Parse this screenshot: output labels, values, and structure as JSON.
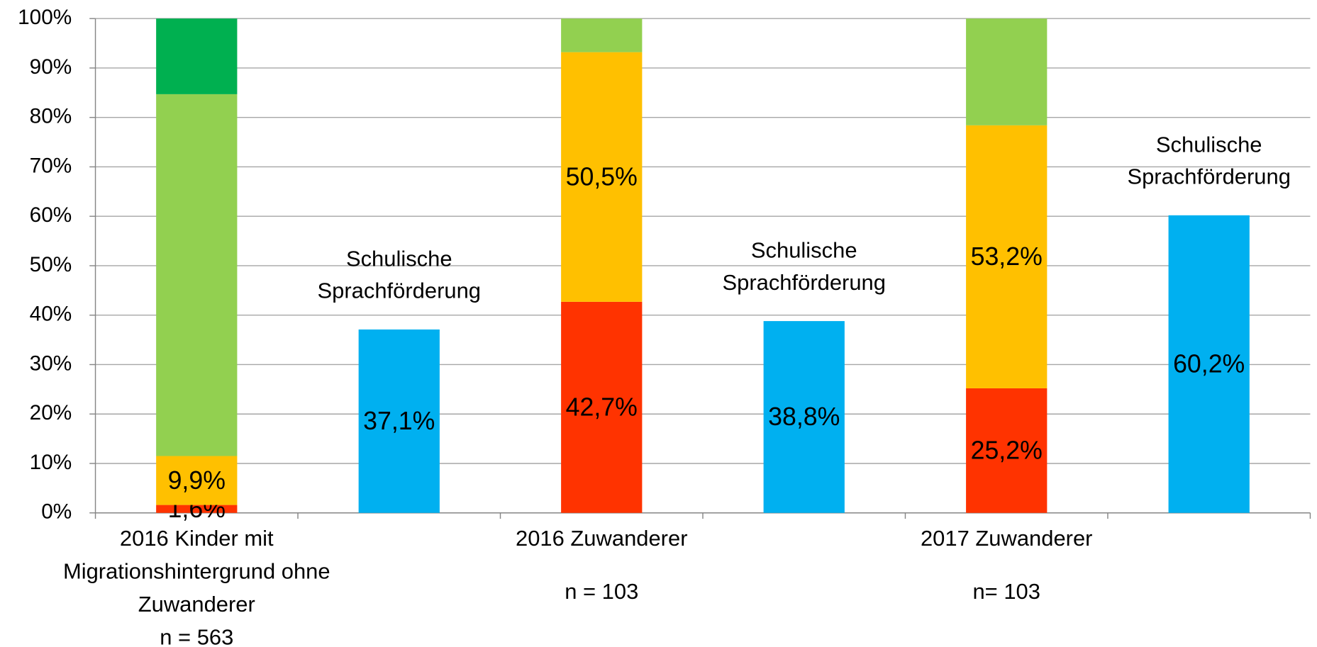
{
  "chart_data": {
    "type": "stacked_bar",
    "categories": [
      [
        "2016 Kinder mit",
        "Migrationshintergrund ohne",
        "Zuwanderer"
      ],
      null,
      [
        "2016 Zuwanderer"
      ],
      null,
      [
        "2017 Zuwanderer"
      ],
      null
    ],
    "sample_sizes": [
      "n = 563",
      null,
      "n = 103",
      null,
      "n= 103",
      null
    ],
    "series": [
      {
        "color": "#ff3300",
        "values": [
          1.6,
          null,
          42.7,
          null,
          25.2,
          null
        ],
        "value_labels": [
          "1,6%",
          null,
          "42,7%",
          null,
          "25,2%",
          null
        ]
      },
      {
        "color": "#ffc000",
        "values": [
          9.9,
          null,
          50.5,
          null,
          53.2,
          null
        ],
        "value_labels": [
          "9,9%",
          null,
          "50,5%",
          null,
          "53,2%",
          null
        ]
      },
      {
        "color": "#92d050",
        "values": [
          73.2,
          null,
          6.8,
          null,
          21.6,
          null
        ]
      },
      {
        "color": "#00b050",
        "values": [
          15.3,
          null,
          null,
          null,
          null,
          null
        ]
      },
      {
        "color": "#00b0f0",
        "values": [
          null,
          37.1,
          null,
          38.8,
          null,
          60.2
        ],
        "value_labels": [
          null,
          "37,1%",
          null,
          "38,8%",
          null,
          "60,2%"
        ]
      }
    ],
    "annotations": [
      [
        "Schulische",
        "Sprachförderung"
      ],
      [
        "Schulische",
        "Sprachförderung"
      ],
      [
        "Schulische",
        "Sprachförderung"
      ]
    ],
    "ylim": [
      0,
      100
    ],
    "yticks": [
      {
        "value": 0,
        "label": "0%"
      },
      {
        "value": 10,
        "label": "10%"
      },
      {
        "value": 20,
        "label": "20%"
      },
      {
        "value": 30,
        "label": "30%"
      },
      {
        "value": 40,
        "label": "40%"
      },
      {
        "value": 50,
        "label": "50%"
      },
      {
        "value": 60,
        "label": "60%"
      },
      {
        "value": 70,
        "label": "70%"
      },
      {
        "value": 80,
        "label": "80%"
      },
      {
        "value": 90,
        "label": "90%"
      },
      {
        "value": 100,
        "label": "100%"
      }
    ],
    "grid": true
  }
}
